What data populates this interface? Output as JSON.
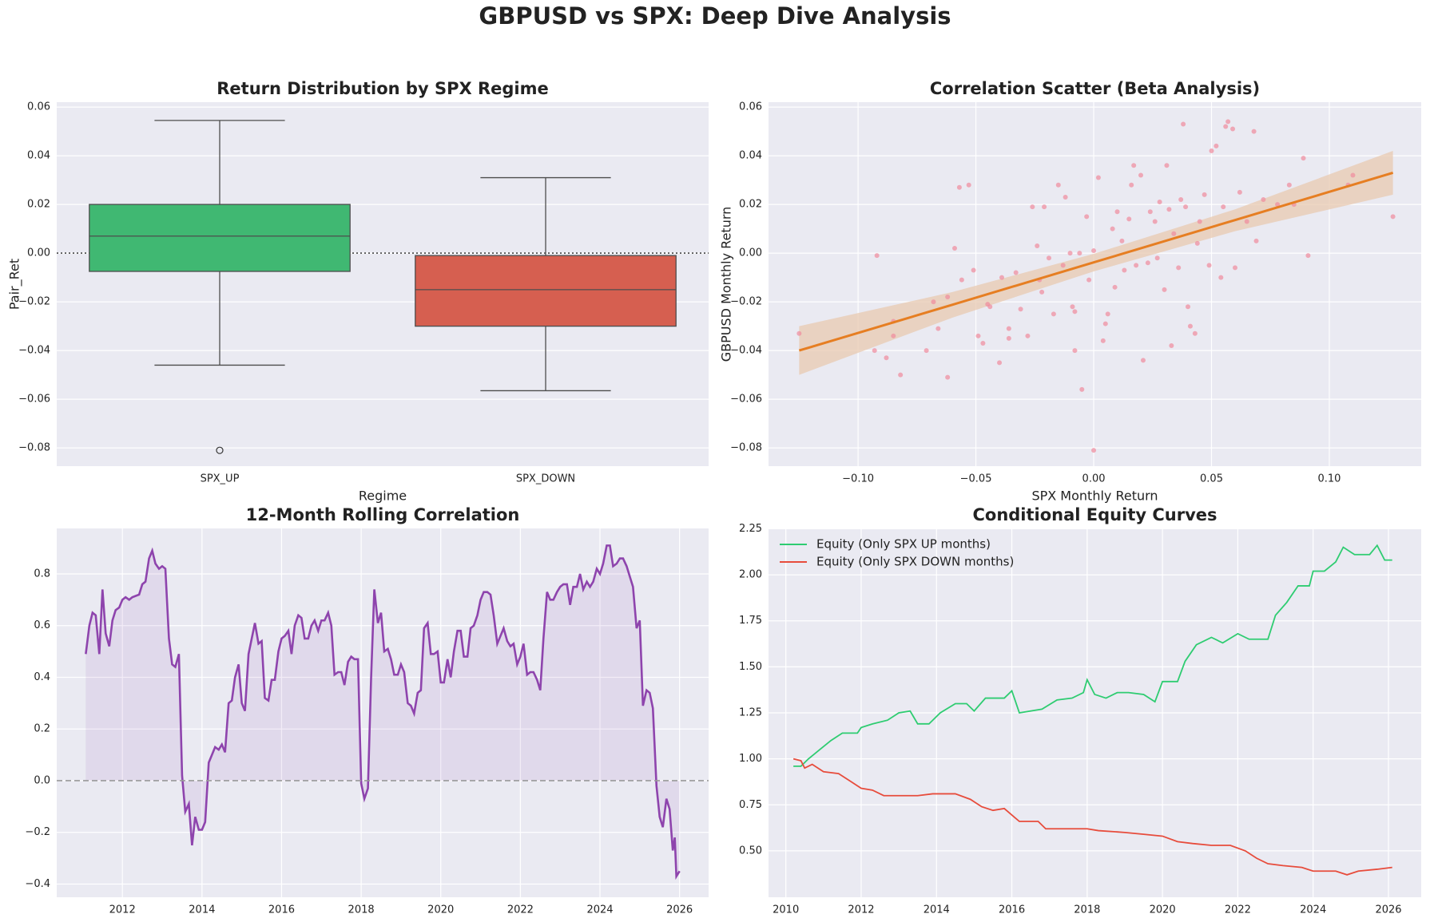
{
  "title": "GBPUSD vs SPX: Deep Dive Analysis",
  "chart_data": [
    {
      "type": "box",
      "title": "Return Distribution by SPX Regime",
      "xlabel": "Regime",
      "ylabel": "Pair_Ret",
      "categories": [
        "SPX_UP",
        "SPX_DOWN"
      ],
      "boxes": [
        {
          "color": "#40b872",
          "whisker_low": -0.046,
          "q1": -0.0075,
          "median": 0.007,
          "q3": 0.02,
          "whisker_high": 0.0545,
          "outliers": [
            -0.081
          ]
        },
        {
          "color": "#d65f50",
          "whisker_low": -0.0565,
          "q1": -0.03,
          "median": -0.015,
          "q3": -0.001,
          "whisker_high": 0.031,
          "outliers": []
        }
      ],
      "ylim": [
        -0.0875,
        0.062
      ],
      "yticks": [
        {
          "value": -0.08,
          "label": "−0.08"
        },
        {
          "value": -0.06,
          "label": "−0.06"
        },
        {
          "value": -0.04,
          "label": "−0.04"
        },
        {
          "value": -0.02,
          "label": "−0.02"
        },
        {
          "value": 0,
          "label": "0.00"
        },
        0.02,
        0.04,
        0.06
      ],
      "hline": 0,
      "hline_style": "dotted",
      "grid": true
    },
    {
      "type": "scatter",
      "title": "Correlation Scatter (Beta Analysis)",
      "xlabel": "SPX Monthly Return",
      "ylabel": "GBPUSD Monthly Return",
      "color": "#f08a9c",
      "x": [
        -0.125,
        -0.092,
        -0.093,
        -0.088,
        -0.085,
        -0.085,
        -0.082,
        -0.071,
        -0.068,
        -0.066,
        -0.062,
        -0.062,
        -0.059,
        -0.057,
        -0.056,
        -0.053,
        -0.051,
        -0.049,
        -0.047,
        -0.045,
        -0.044,
        -0.04,
        -0.039,
        -0.036,
        -0.036,
        -0.033,
        -0.031,
        -0.028,
        -0.026,
        -0.024,
        -0.023,
        -0.022,
        -0.021,
        -0.019,
        -0.017,
        -0.015,
        -0.013,
        -0.012,
        -0.01,
        -0.009,
        -0.008,
        -0.008,
        -0.006,
        -0.005,
        -0.003,
        -0.002,
        0.0,
        0.0,
        0.002,
        0.004,
        0.005,
        0.006,
        0.008,
        0.009,
        0.01,
        0.012,
        0.013,
        0.015,
        0.016,
        0.017,
        0.018,
        0.02,
        0.021,
        0.023,
        0.024,
        0.026,
        0.027,
        0.028,
        0.03,
        0.031,
        0.032,
        0.033,
        0.034,
        0.036,
        0.037,
        0.038,
        0.039,
        0.04,
        0.041,
        0.043,
        0.044,
        0.045,
        0.047,
        0.049,
        0.05,
        0.052,
        0.054,
        0.055,
        0.056,
        0.057,
        0.059,
        0.06,
        0.062,
        0.065,
        0.068,
        0.069,
        0.072,
        0.078,
        0.083,
        0.085,
        0.089,
        0.091,
        0.108,
        0.11,
        0.127
      ],
      "y": [
        -0.033,
        -0.001,
        -0.04,
        -0.043,
        -0.034,
        -0.028,
        -0.05,
        -0.04,
        -0.02,
        -0.031,
        -0.051,
        -0.018,
        0.002,
        0.027,
        -0.011,
        0.028,
        -0.007,
        -0.034,
        -0.037,
        -0.021,
        -0.022,
        -0.045,
        -0.01,
        -0.031,
        -0.035,
        -0.008,
        -0.023,
        -0.034,
        0.019,
        0.003,
        -0.011,
        -0.016,
        0.019,
        -0.002,
        -0.025,
        0.028,
        -0.005,
        0.023,
        0.0,
        -0.022,
        -0.024,
        -0.04,
        0.0,
        -0.056,
        0.015,
        -0.011,
        0.001,
        -0.081,
        0.031,
        -0.036,
        -0.029,
        -0.025,
        0.01,
        -0.014,
        0.017,
        0.005,
        -0.007,
        0.014,
        0.028,
        0.036,
        -0.005,
        0.032,
        -0.044,
        -0.004,
        0.017,
        0.013,
        -0.002,
        0.021,
        -0.015,
        0.036,
        0.018,
        -0.038,
        0.008,
        -0.006,
        0.022,
        0.053,
        0.019,
        -0.022,
        -0.03,
        -0.033,
        0.004,
        0.013,
        0.024,
        -0.005,
        0.042,
        0.044,
        -0.01,
        0.019,
        0.052,
        0.054,
        0.051,
        -0.006,
        0.025,
        0.013,
        0.05,
        0.005,
        0.022,
        0.02,
        0.028,
        0.02,
        0.039,
        -0.001,
        0.028,
        0.032,
        0.015
      ],
      "fit": {
        "color": "#e67e22",
        "band_color": "#e8c9b0",
        "x": [
          -0.125,
          -0.06,
          0,
          0.06,
          0.127
        ],
        "y": [
          -0.04,
          -0.0212,
          -0.0038,
          0.0136,
          0.033
        ],
        "lower": [
          -0.05,
          -0.0265,
          -0.0075,
          0.009,
          0.024
        ],
        "upper": [
          -0.03,
          -0.016,
          -0.0003,
          0.018,
          0.042
        ]
      },
      "xlim": [
        -0.138,
        0.139
      ],
      "xticks": [
        {
          "value": -0.1,
          "label": "−0.10"
        },
        {
          "value": -0.05,
          "label": "−0.05"
        },
        {
          "value": 0,
          "label": "0.00"
        },
        0.05,
        {
          "value": 0.1,
          "label": "0.10"
        }
      ],
      "ylim": [
        -0.0875,
        0.062
      ],
      "yticks": [
        {
          "value": -0.08,
          "label": "−0.08"
        },
        {
          "value": -0.06,
          "label": "−0.06"
        },
        {
          "value": -0.04,
          "label": "−0.04"
        },
        {
          "value": -0.02,
          "label": "−0.02"
        },
        {
          "value": 0,
          "label": "0.00"
        },
        0.02,
        0.04,
        0.06
      ],
      "grid": true
    },
    {
      "type": "line",
      "title": "12-Month Rolling Correlation",
      "series": [
        {
          "color": "#8e44ad",
          "fill": true,
          "x": [
            2011.08,
            2011.17,
            2011.25,
            2011.33,
            2011.42,
            2011.5,
            2011.58,
            2011.67,
            2011.75,
            2011.83,
            2011.92,
            2012.0,
            2012.08,
            2012.17,
            2012.25,
            2012.42,
            2012.5,
            2012.58,
            2012.67,
            2012.75,
            2012.83,
            2012.92,
            2013.0,
            2013.08,
            2013.17,
            2013.25,
            2013.33,
            2013.42,
            2013.5,
            2013.58,
            2013.67,
            2013.75,
            2013.83,
            2013.92,
            2014.0,
            2014.08,
            2014.17,
            2014.25,
            2014.33,
            2014.42,
            2014.5,
            2014.58,
            2014.67,
            2014.75,
            2014.83,
            2014.92,
            2015.0,
            2015.08,
            2015.17,
            2015.25,
            2015.33,
            2015.42,
            2015.5,
            2015.58,
            2015.67,
            2015.75,
            2015.83,
            2015.92,
            2016.0,
            2016.08,
            2016.17,
            2016.25,
            2016.33,
            2016.42,
            2016.5,
            2016.58,
            2016.67,
            2016.75,
            2016.83,
            2016.92,
            2017.0,
            2017.08,
            2017.17,
            2017.25,
            2017.33,
            2017.42,
            2017.5,
            2017.58,
            2017.67,
            2017.75,
            2017.83,
            2017.92,
            2018.0,
            2018.08,
            2018.17,
            2018.25,
            2018.33,
            2018.42,
            2018.5,
            2018.58,
            2018.67,
            2018.75,
            2018.83,
            2018.92,
            2019.0,
            2019.08,
            2019.17,
            2019.25,
            2019.33,
            2019.42,
            2019.5,
            2019.58,
            2019.67,
            2019.75,
            2019.83,
            2019.92,
            2020.0,
            2020.08,
            2020.17,
            2020.25,
            2020.33,
            2020.42,
            2020.5,
            2020.58,
            2020.67,
            2020.75,
            2020.83,
            2020.92,
            2021.0,
            2021.08,
            2021.17,
            2021.25,
            2021.33,
            2021.42,
            2021.5,
            2021.58,
            2021.67,
            2021.75,
            2021.83,
            2021.92,
            2022.0,
            2022.08,
            2022.17,
            2022.25,
            2022.33,
            2022.42,
            2022.5,
            2022.58,
            2022.67,
            2022.75,
            2022.83,
            2022.92,
            2023.0,
            2023.08,
            2023.17,
            2023.25,
            2023.33,
            2023.42,
            2023.5,
            2023.58,
            2023.67,
            2023.75,
            2023.83,
            2023.92,
            2024.0,
            2024.08,
            2024.17,
            2024.25,
            2024.33,
            2024.42,
            2024.5,
            2024.58,
            2024.67,
            2024.75,
            2024.83,
            2024.92,
            2025.0,
            2025.08,
            2025.17,
            2025.25,
            2025.33,
            2025.42,
            2025.5,
            2025.58,
            2025.67,
            2025.75,
            2025.83,
            2025.88,
            2025.92,
            2026.0
          ],
          "values": [
            0.49,
            0.6,
            0.65,
            0.64,
            0.49,
            0.74,
            0.57,
            0.52,
            0.62,
            0.66,
            0.67,
            0.7,
            0.71,
            0.7,
            0.71,
            0.72,
            0.76,
            0.77,
            0.86,
            0.89,
            0.84,
            0.82,
            0.83,
            0.82,
            0.55,
            0.45,
            0.44,
            0.49,
            0.02,
            -0.12,
            -0.09,
            -0.25,
            -0.14,
            -0.19,
            -0.19,
            -0.16,
            0.07,
            0.1,
            0.13,
            0.12,
            0.14,
            0.11,
            0.3,
            0.31,
            0.4,
            0.45,
            0.3,
            0.27,
            0.49,
            0.55,
            0.61,
            0.53,
            0.54,
            0.32,
            0.31,
            0.39,
            0.39,
            0.5,
            0.55,
            0.56,
            0.58,
            0.49,
            0.6,
            0.64,
            0.63,
            0.55,
            0.55,
            0.6,
            0.62,
            0.58,
            0.62,
            0.62,
            0.65,
            0.6,
            0.41,
            0.42,
            0.42,
            0.37,
            0.46,
            0.48,
            0.47,
            0.47,
            -0.01,
            -0.07,
            -0.03,
            0.4,
            0.74,
            0.61,
            0.65,
            0.5,
            0.51,
            0.47,
            0.41,
            0.41,
            0.45,
            0.42,
            0.3,
            0.29,
            0.26,
            0.34,
            0.35,
            0.59,
            0.61,
            0.49,
            0.49,
            0.5,
            0.38,
            0.38,
            0.47,
            0.4,
            0.5,
            0.58,
            0.58,
            0.48,
            0.48,
            0.59,
            0.6,
            0.64,
            0.7,
            0.73,
            0.73,
            0.72,
            0.64,
            0.53,
            0.56,
            0.59,
            0.54,
            0.52,
            0.53,
            0.45,
            0.48,
            0.53,
            0.41,
            0.42,
            0.42,
            0.39,
            0.35,
            0.55,
            0.73,
            0.7,
            0.7,
            0.73,
            0.75,
            0.76,
            0.76,
            0.68,
            0.75,
            0.75,
            0.8,
            0.74,
            0.77,
            0.75,
            0.77,
            0.82,
            0.8,
            0.84,
            0.91,
            0.91,
            0.83,
            0.84,
            0.86,
            0.86,
            0.83,
            0.79,
            0.75,
            0.59,
            0.62,
            0.29,
            0.35,
            0.34,
            0.28,
            -0.02,
            -0.14,
            -0.18,
            -0.07,
            -0.11,
            -0.27,
            -0.22,
            -0.37,
            -0.35
          ]
        }
      ],
      "xlim": [
        2010.35,
        2026.73
      ],
      "xticks": [
        2012,
        2014,
        2016,
        2018,
        2020,
        2022,
        2024,
        2026
      ],
      "ylim": [
        -0.451,
        0.976
      ],
      "yticks": [
        {
          "value": -0.4,
          "label": "−0.4"
        },
        {
          "value": -0.2,
          "label": "−0.2"
        },
        {
          "value": 0,
          "label": "0.0"
        },
        0.2,
        0.4,
        0.6,
        0.8
      ],
      "hline": 0,
      "hline_style": "dashed",
      "grid": true
    },
    {
      "type": "line",
      "title": "Conditional Equity Curves",
      "legend": "upper left",
      "series": [
        {
          "name": "Equity (Only SPX UP months)",
          "color": "#2ecc71",
          "x": [
            2010.2,
            2010.4,
            2010.6,
            2010.9,
            2011.2,
            2011.5,
            2011.9,
            2012.0,
            2012.3,
            2012.7,
            2013.0,
            2013.3,
            2013.5,
            2013.8,
            2014.1,
            2014.5,
            2014.8,
            2015.0,
            2015.3,
            2015.8,
            2016.0,
            2016.2,
            2016.8,
            2017.2,
            2017.6,
            2017.9,
            2018.0,
            2018.2,
            2018.5,
            2018.8,
            2019.1,
            2019.5,
            2019.8,
            2020.0,
            2020.4,
            2020.6,
            2020.9,
            2021.3,
            2021.6,
            2022.0,
            2022.3,
            2022.8,
            2023.0,
            2023.3,
            2023.6,
            2023.9,
            2024.0,
            2024.3,
            2024.6,
            2024.8,
            2025.1,
            2025.5,
            2025.7,
            2025.9,
            2026.1
          ],
          "values": [
            0.96,
            0.96,
            1.0,
            1.05,
            1.1,
            1.14,
            1.14,
            1.17,
            1.19,
            1.21,
            1.25,
            1.26,
            1.19,
            1.19,
            1.25,
            1.3,
            1.3,
            1.26,
            1.33,
            1.33,
            1.37,
            1.25,
            1.27,
            1.32,
            1.33,
            1.36,
            1.43,
            1.35,
            1.33,
            1.36,
            1.36,
            1.35,
            1.31,
            1.42,
            1.42,
            1.53,
            1.62,
            1.66,
            1.63,
            1.68,
            1.65,
            1.65,
            1.78,
            1.85,
            1.94,
            1.94,
            2.02,
            2.02,
            2.07,
            2.15,
            2.11,
            2.11,
            2.16,
            2.08,
            2.08
          ]
        },
        {
          "name": "Equity (Only SPX DOWN months)",
          "color": "#e74c3c",
          "x": [
            2010.2,
            2010.4,
            2010.5,
            2010.7,
            2011.0,
            2011.4,
            2011.7,
            2012.0,
            2012.3,
            2012.6,
            2013.5,
            2013.9,
            2014.5,
            2014.9,
            2015.2,
            2015.5,
            2015.8,
            2016.2,
            2016.7,
            2016.9,
            2017.5,
            2018.0,
            2018.3,
            2019.0,
            2019.5,
            2020.0,
            2020.4,
            2020.8,
            2021.3,
            2021.8,
            2022.2,
            2022.5,
            2022.8,
            2023.2,
            2023.7,
            2024.0,
            2024.6,
            2024.9,
            2025.2,
            2025.7,
            2026.1
          ],
          "values": [
            1.0,
            0.99,
            0.95,
            0.97,
            0.93,
            0.92,
            0.88,
            0.84,
            0.83,
            0.8,
            0.8,
            0.81,
            0.81,
            0.78,
            0.74,
            0.72,
            0.73,
            0.66,
            0.66,
            0.62,
            0.62,
            0.62,
            0.61,
            0.6,
            0.59,
            0.58,
            0.55,
            0.54,
            0.53,
            0.53,
            0.5,
            0.46,
            0.43,
            0.42,
            0.41,
            0.39,
            0.39,
            0.37,
            0.39,
            0.4,
            0.41
          ]
        }
      ],
      "xlim": [
        2009.54,
        2026.87
      ],
      "xticks": [
        2010,
        2012,
        2014,
        2016,
        2018,
        2020,
        2022,
        2024,
        2026
      ],
      "ylim": [
        0.248,
        2.252
      ],
      "yticks": [
        {
          "value": 0.5,
          "label": "0.50"
        },
        0.75,
        {
          "value": 1,
          "label": "1.00"
        },
        1.25,
        {
          "value": 1.5,
          "label": "1.50"
        },
        1.75,
        {
          "value": 2,
          "label": "2.00"
        },
        2.25
      ],
      "grid": true
    }
  ]
}
